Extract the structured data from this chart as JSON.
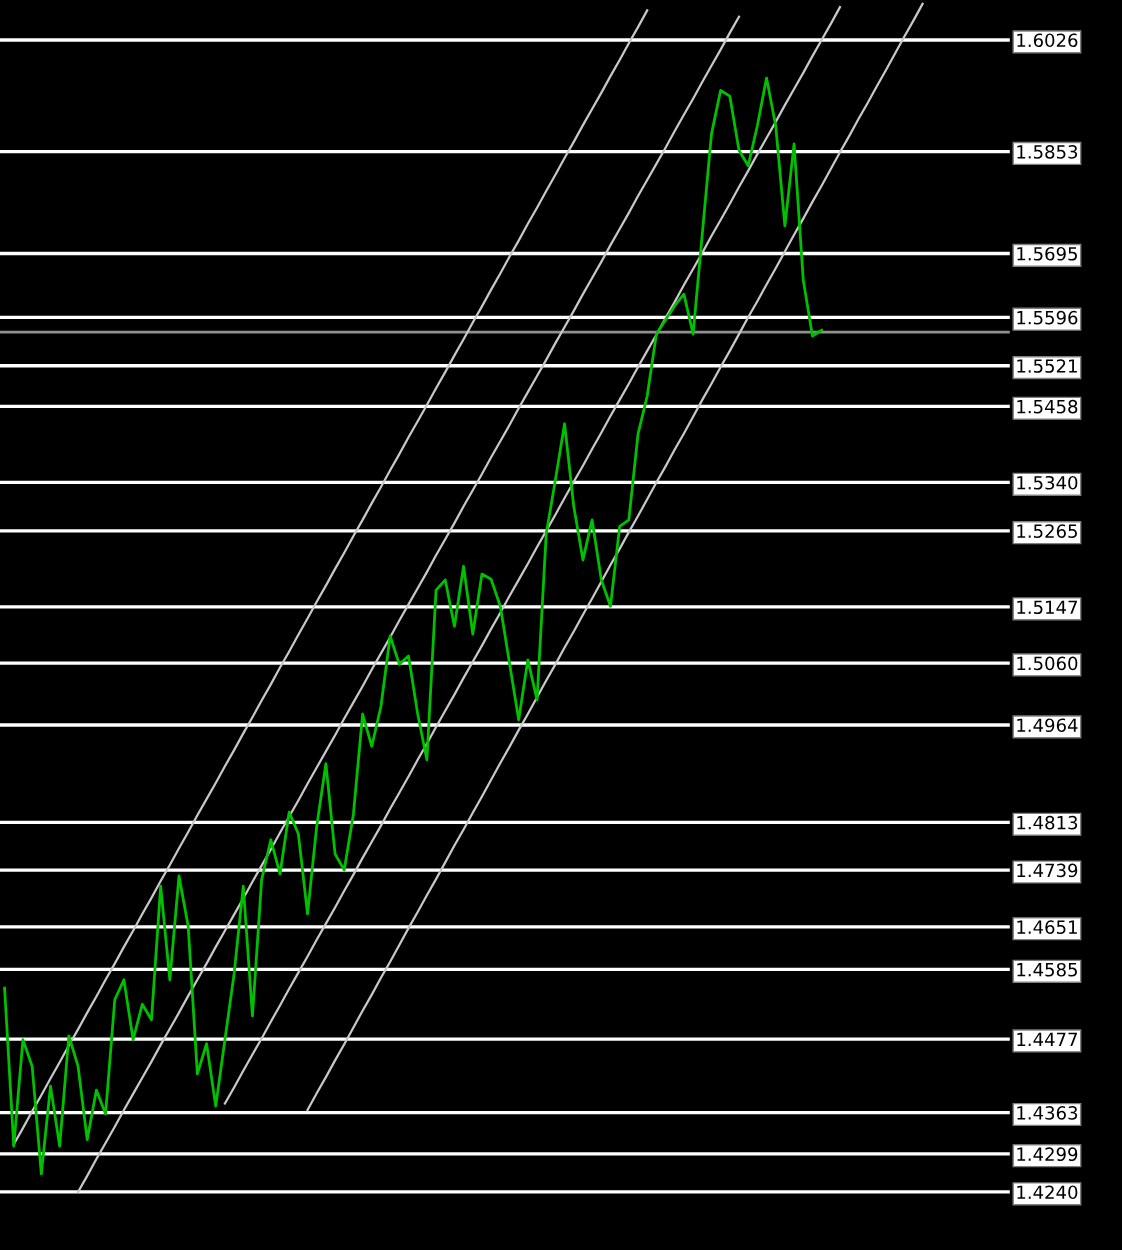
{
  "chart_data": {
    "type": "line",
    "categories": [
      null,
      null,
      null,
      null,
      null,
      null,
      null,
      null,
      null,
      null,
      null,
      null,
      null,
      null,
      null,
      null,
      null,
      null,
      null,
      null,
      null,
      null,
      null,
      null,
      null,
      null,
      null,
      null,
      null,
      null,
      null,
      null,
      null,
      null,
      null,
      null,
      null,
      null,
      null,
      null,
      null,
      null,
      null,
      null,
      null,
      null,
      null,
      null,
      null,
      null,
      null,
      null,
      null,
      null,
      null,
      null,
      null,
      null,
      null,
      null,
      null,
      null,
      null,
      null,
      null,
      null,
      null,
      null,
      null,
      null,
      null,
      null,
      null,
      null,
      null,
      null,
      null,
      null,
      null,
      null,
      null,
      null,
      null,
      null,
      null,
      null,
      null,
      null,
      null,
      null,
      null,
      null,
      null,
      null,
      null,
      null,
      null,
      null,
      null,
      null,
      null,
      null,
      null,
      null,
      null,
      null,
      null,
      null,
      null,
      null
    ],
    "series": [
      {
        "color": "#00c000",
        "values": [
          1.4556,
          1.4311,
          1.4476,
          1.4435,
          1.4268,
          1.4404,
          1.4311,
          1.4482,
          1.4435,
          1.4321,
          1.4398,
          1.4361,
          1.4538,
          1.4569,
          1.4476,
          1.4531,
          1.4507,
          1.4714,
          1.4569,
          1.473,
          1.4652,
          1.4423,
          1.447,
          1.4373,
          1.4476,
          1.4578,
          1.4714,
          1.4513,
          1.4724,
          1.4786,
          1.4733,
          1.4829,
          1.4795,
          1.4671,
          1.4807,
          1.4904,
          1.4764,
          1.4739,
          1.4826,
          1.4981,
          1.4931,
          1.4993,
          1.5102,
          1.5058,
          1.5071,
          1.4981,
          1.491,
          1.5173,
          1.5189,
          1.5117,
          1.521,
          1.5105,
          1.5198,
          1.519,
          1.5148,
          1.506,
          1.4972,
          1.5065,
          1.5003,
          1.526,
          1.5344,
          1.5431,
          1.5303,
          1.522,
          1.5282,
          1.5189,
          1.5148,
          1.5272,
          1.5282,
          1.5415,
          1.5474,
          1.557,
          1.5592,
          1.5614,
          1.5632,
          1.557,
          1.5725,
          1.588,
          1.5948,
          1.5939,
          1.5855,
          1.5831,
          1.5893,
          1.5967,
          1.5893,
          1.5738,
          1.5865,
          1.5654,
          1.5567,
          1.5576,
          null,
          null,
          null,
          null,
          null,
          null,
          null,
          null,
          null,
          null,
          null,
          null,
          null,
          null,
          null,
          null,
          null,
          null,
          null,
          null
        ]
      },
      {
        "color": "#c8c8c8",
        "values": [
          null,
          1.4314,
          1.4339,
          1.4365,
          1.439,
          1.4416,
          1.4441,
          1.4467,
          1.4492,
          1.4518,
          1.4543,
          1.4569,
          1.4594,
          1.462,
          1.4645,
          1.4671,
          1.4696,
          1.4722,
          1.4747,
          1.4773,
          1.4798,
          1.4824,
          1.4849,
          1.4874,
          1.49,
          1.4925,
          1.4951,
          1.4976,
          1.5002,
          1.5027,
          1.5053,
          1.5078,
          1.5104,
          1.5129,
          1.5155,
          1.518,
          1.5206,
          1.5231,
          1.5257,
          1.5282,
          1.5308,
          1.5333,
          1.5359,
          1.5384,
          1.541,
          1.5435,
          1.546,
          1.5486,
          1.5511,
          1.5537,
          1.5562,
          1.5588,
          1.5613,
          1.5639,
          1.5664,
          1.569,
          1.5715,
          1.5741,
          1.5766,
          1.5792,
          1.5817,
          1.5843,
          1.5868,
          1.5894,
          1.5919,
          1.5944,
          1.597,
          1.5995,
          1.6021,
          1.6046,
          1.6072,
          null,
          null,
          null,
          null,
          null,
          null,
          null,
          null,
          null,
          null,
          null,
          null,
          null,
          null,
          null,
          null,
          null,
          null,
          null,
          null,
          null,
          null,
          null,
          null,
          null,
          null,
          null,
          null,
          null,
          null,
          null,
          null,
          null,
          null,
          null,
          null,
          null,
          null,
          null
        ]
      },
      {
        "color": "#c8c8c8",
        "values": [
          null,
          null,
          null,
          null,
          null,
          null,
          null,
          null,
          1.424,
          1.4265,
          1.4291,
          1.4316,
          1.4341,
          1.4367,
          1.4392,
          1.4417,
          1.4442,
          1.4468,
          1.4493,
          1.4518,
          1.4544,
          1.4569,
          1.4594,
          1.462,
          1.4645,
          1.467,
          1.4695,
          1.4721,
          1.4746,
          1.4771,
          1.4797,
          1.4822,
          1.4847,
          1.4873,
          1.4898,
          1.4923,
          1.4948,
          1.4974,
          1.4999,
          1.5024,
          1.505,
          1.5075,
          1.51,
          1.5126,
          1.5151,
          1.5176,
          1.5201,
          1.5227,
          1.5252,
          1.5277,
          1.5303,
          1.5328,
          1.5353,
          1.5379,
          1.5404,
          1.5429,
          1.5455,
          1.548,
          1.5505,
          1.553,
          1.5556,
          1.5581,
          1.5606,
          1.5632,
          1.5657,
          1.5682,
          1.5708,
          1.5733,
          1.5758,
          1.5784,
          1.5809,
          1.5834,
          1.5859,
          1.5885,
          1.591,
          1.5935,
          1.5961,
          1.5986,
          1.6011,
          1.6037,
          1.6062,
          null,
          null,
          null,
          null,
          null,
          null,
          null,
          null,
          null,
          null,
          null,
          null,
          null,
          null,
          null,
          null,
          null,
          null,
          null,
          null,
          null,
          null,
          null,
          null,
          null,
          null,
          null,
          null,
          null
        ]
      },
      {
        "color": "#c8c8c8",
        "values": [
          null,
          null,
          null,
          null,
          null,
          null,
          null,
          null,
          null,
          null,
          null,
          null,
          null,
          null,
          null,
          null,
          null,
          null,
          null,
          null,
          null,
          null,
          null,
          null,
          1.4377,
          1.4402,
          1.4428,
          1.4453,
          1.4478,
          1.4504,
          1.4529,
          1.4555,
          1.458,
          1.4605,
          1.4631,
          1.4656,
          1.4681,
          1.4707,
          1.4732,
          1.4758,
          1.4783,
          1.4808,
          1.4834,
          1.4859,
          1.4884,
          1.491,
          1.4935,
          1.4961,
          1.4986,
          1.5011,
          1.5037,
          1.5062,
          1.5087,
          1.5113,
          1.5138,
          1.5164,
          1.5189,
          1.5214,
          1.524,
          1.5265,
          1.529,
          1.5316,
          1.5341,
          1.5366,
          1.5392,
          1.5417,
          1.5443,
          1.5468,
          1.5493,
          1.5519,
          1.5544,
          1.5569,
          1.5595,
          1.562,
          1.5646,
          1.5671,
          1.5696,
          1.5722,
          1.5747,
          1.5772,
          1.5798,
          1.5823,
          1.5849,
          1.5874,
          1.5899,
          1.5925,
          1.595,
          1.5975,
          1.6001,
          1.6026,
          1.6051,
          1.6077,
          null,
          null,
          null,
          null,
          null,
          null,
          null,
          null,
          null,
          null,
          null,
          null,
          null,
          null,
          null,
          null,
          null,
          null
        ]
      },
      {
        "color": "#c8c8c8",
        "values": [
          null,
          null,
          null,
          null,
          null,
          null,
          null,
          null,
          null,
          null,
          null,
          null,
          null,
          null,
          null,
          null,
          null,
          null,
          null,
          null,
          null,
          null,
          null,
          null,
          null,
          null,
          null,
          null,
          null,
          null,
          null,
          null,
          null,
          1.4367,
          1.4393,
          1.4418,
          1.4444,
          1.4469,
          1.4495,
          1.4521,
          1.4546,
          1.4572,
          1.4597,
          1.4623,
          1.4649,
          1.4674,
          1.47,
          1.4725,
          1.4751,
          1.4777,
          1.4802,
          1.4828,
          1.4853,
          1.4879,
          1.4905,
          1.493,
          1.4956,
          1.4981,
          1.5007,
          1.5033,
          1.5058,
          1.5084,
          1.5109,
          1.5135,
          1.516,
          1.5186,
          1.5212,
          1.5237,
          1.5263,
          1.5288,
          1.5314,
          1.534,
          1.5365,
          1.5391,
          1.5416,
          1.5442,
          1.5468,
          1.5493,
          1.5519,
          1.5544,
          1.557,
          1.5596,
          1.5621,
          1.5647,
          1.5672,
          1.5698,
          1.5724,
          1.5749,
          1.5775,
          1.58,
          1.5826,
          1.5852,
          1.5877,
          1.5903,
          1.5928,
          1.5954,
          1.5979,
          1.6005,
          1.6031,
          1.6056,
          1.6082,
          null,
          null,
          null,
          null,
          null,
          null,
          null,
          null,
          null
        ]
      }
    ],
    "ylim": [
      1.415,
      1.6088
    ],
    "yticks": [
      1.6026,
      1.5853,
      1.5695,
      1.5596,
      1.5521,
      1.5458,
      {
        "value": 1.534,
        "label": "1.5340"
      },
      1.5265,
      1.5147,
      {
        "value": 1.506,
        "label": "1.5060"
      },
      1.4964,
      1.4813,
      1.4739,
      1.4651,
      1.4585,
      1.4477,
      1.4363,
      1.4299,
      {
        "value": 1.424,
        "label": "1.4240"
      }
    ],
    "grid": "y",
    "tick_labels": "y",
    "ref_lines": [
      {
        "axis": "y",
        "value": 1.5573,
        "color": "#909090"
      }
    ]
  }
}
